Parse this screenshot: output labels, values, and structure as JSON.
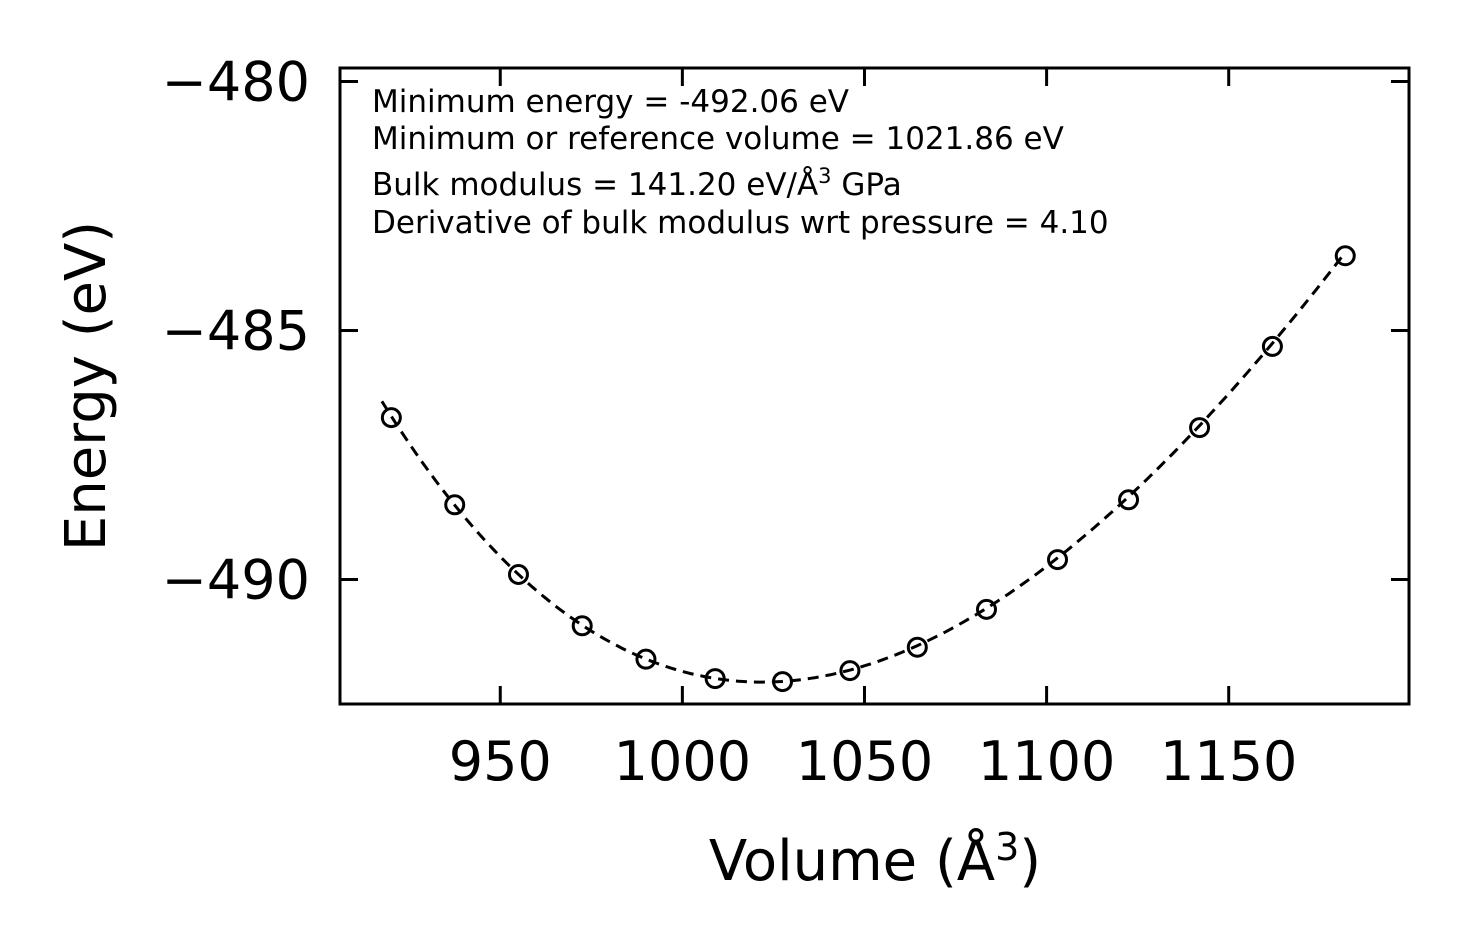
{
  "chart_data": {
    "type": "scatter",
    "title": "",
    "xlabel": "Volume (Å",
    "xlabel_sup": "3",
    "xlabel_close": ")",
    "ylabel": "Energy (eV)",
    "xlim": [
      906.0,
      1199.5
    ],
    "ylim": [
      -492.5,
      -479.73
    ],
    "x_ticks": [
      950,
      1000,
      1050,
      1100,
      1150
    ],
    "x_tick_labels": [
      "950",
      "1000",
      "1050",
      "1100",
      "1150"
    ],
    "y_ticks": [
      -480,
      -485,
      -490
    ],
    "y_tick_labels": [
      "−480",
      "−485",
      "−490"
    ],
    "grid": false,
    "series": [
      {
        "name": "data",
        "style": "open-circle",
        "x": [
          920.1,
          937.5,
          955.0,
          972.5,
          990.0,
          1009.0,
          1027.5,
          1046.0,
          1064.5,
          1083.5,
          1103.0,
          1122.5,
          1142.0,
          1162.0,
          1182.0
        ],
        "y": [
          -486.75,
          -488.5,
          -489.9,
          -490.93,
          -491.6,
          -491.99,
          -492.05,
          -491.83,
          -491.36,
          -490.6,
          -489.6,
          -488.4,
          -486.95,
          -485.32,
          -483.5
        ]
      },
      {
        "name": "fit",
        "style": "dashed-line",
        "x_range": [
          917.5,
          1182.0
        ],
        "E0": -492.06,
        "V0": 1021.86,
        "B0_GPa": 141.2,
        "B0_prime": 4.1
      }
    ],
    "annotations": [
      "Minimum energy = -492.06 eV",
      "Minimum or reference volume = 1021.86 eV",
      "Bulk modulus = 141.20 eV/Å",
      "3",
      " GPa",
      "Derivative of bulk modulus wrt pressure = 4.10"
    ]
  }
}
